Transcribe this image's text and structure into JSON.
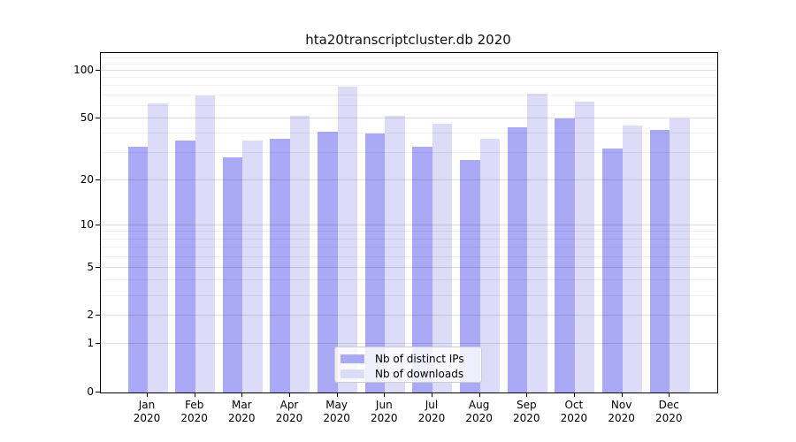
{
  "title": "hta20transcriptcluster.db 2020",
  "colors": {
    "distinct_ips_bar": "#a9a9f5",
    "downloads_bar": "#dcdcf8",
    "major_grid": "#dddddd",
    "minor_grid": "#f1f1f1",
    "spine": "#000000",
    "legend_border": "#cccccc"
  },
  "legend": {
    "items": [
      {
        "label": "Nb of distinct IPs",
        "color": "#a9a9f5"
      },
      {
        "label": "Nb of downloads",
        "color": "#dcdcf8"
      }
    ]
  },
  "chart_data": {
    "type": "bar",
    "title": "hta20transcriptcluster.db 2020",
    "categories": [
      "Jan",
      "Feb",
      "Mar",
      "Apr",
      "May",
      "Jun",
      "Jul",
      "Aug",
      "Sep",
      "Oct",
      "Nov",
      "Dec"
    ],
    "year": "2020",
    "series": [
      {
        "name": "Nb of distinct IPs",
        "color": "#a9a9f5",
        "values": [
          33,
          36,
          28,
          37,
          41,
          40,
          33,
          27,
          44,
          50,
          32,
          42
        ]
      },
      {
        "name": "Nb of downloads",
        "color": "#dcdcf8",
        "values": [
          62,
          70,
          36,
          52,
          79,
          52,
          46,
          37,
          72,
          64,
          45,
          50
        ]
      }
    ],
    "xlabel": "",
    "ylabel": "",
    "y_axis": {
      "scale": "log1p",
      "tick_labels": [
        "100",
        "50",
        "20",
        "10",
        "5",
        "2",
        "1",
        "0"
      ],
      "tick_values": [
        100,
        50,
        20,
        10,
        5,
        2,
        1,
        0
      ],
      "minor_tick_values": [
        120,
        110,
        90,
        80,
        70,
        60,
        40,
        30,
        9,
        8,
        7,
        6,
        4,
        3
      ],
      "ylim": [
        0,
        130
      ]
    },
    "grid": "horizontal",
    "legend_position": "inside-bottom-center"
  }
}
